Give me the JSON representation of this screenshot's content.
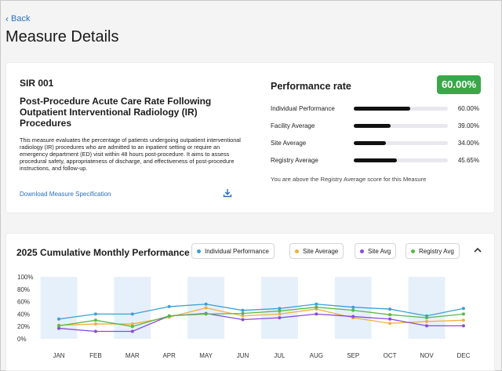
{
  "nav": {
    "back_label": "Back"
  },
  "page": {
    "title": "Measure Details"
  },
  "measure": {
    "code": "SIR 001",
    "title": "Post-Procedure Acute Care Rate Following Outpatient Interventional Radiology (IR) Procedures",
    "description": "This measure evaluates the percentage of patients undergoing outpatient interventional radiology (IR) procedures who are admitted to an inpatient setting or require an emergency department (ED) visit within 48 hours post-procedure. It aims to assess procedural safety, appropriateness of discharge, and effectiveness of post-procedure instructions, and follow-up.",
    "download_label": "Download Measure Specification",
    "download_icon": "download-icon"
  },
  "performance": {
    "title": "Performance rate",
    "badge": "60.00%",
    "badge_color": "#3aa84a",
    "rows": [
      {
        "label": "Individual Performance",
        "value_text": "60.00%",
        "value": 60.0
      },
      {
        "label": "Facility Average",
        "value_text": "39.00%",
        "value": 39.0
      },
      {
        "label": "Site Average",
        "value_text": "34.00%",
        "value": 34.0
      },
      {
        "label": "Registry Average",
        "value_text": "45.65%",
        "value": 45.65
      }
    ],
    "note": "You are above the Registry Average score for this Measure"
  },
  "monthly": {
    "title": "2025 Cumulative Monthly Performance",
    "collapse_icon": "chevron-up-icon"
  },
  "chart_data": {
    "type": "line",
    "categories": [
      "JAN",
      "FEB",
      "MAR",
      "APR",
      "MAY",
      "JUN",
      "JUL",
      "AUG",
      "SEP",
      "OCT",
      "NOV",
      "DEC"
    ],
    "ylim": [
      0,
      100
    ],
    "yticks": [
      "0%",
      "20%",
      "40%",
      "60%",
      "80%",
      "100%"
    ],
    "legend_placement": "top",
    "band_color": "#e6f0fa",
    "series": [
      {
        "name": "Individual Performance",
        "color": "#3aa0d8",
        "values": [
          32,
          40,
          40,
          52,
          56,
          46,
          49,
          56,
          51,
          48,
          37,
          49
        ]
      },
      {
        "name": "Site Average",
        "color": "#f0b040",
        "values": [
          22,
          24,
          24,
          35,
          50,
          37,
          40,
          48,
          34,
          25,
          28,
          30
        ]
      },
      {
        "name": "Site Avg",
        "color": "#8a4ae0",
        "values": [
          17,
          12,
          12,
          37,
          41,
          31,
          34,
          40,
          36,
          32,
          21,
          21
        ]
      },
      {
        "name": "Registry Avg",
        "color": "#58b84a",
        "values": [
          21,
          30,
          20,
          37,
          40,
          41,
          45,
          51,
          46,
          39,
          34,
          40
        ]
      }
    ]
  }
}
